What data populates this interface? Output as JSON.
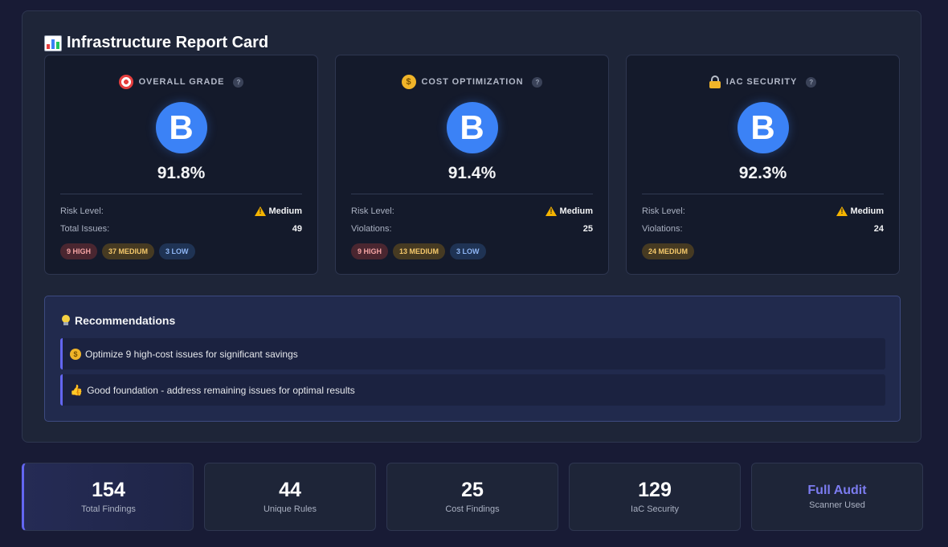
{
  "report": {
    "title": "Infrastructure Report Card",
    "title_icon": "bar-chart-icon"
  },
  "cards": [
    {
      "label": "OVERALL GRADE",
      "icon": "target-icon",
      "help": "?",
      "grade": "B",
      "percent": "91.8%",
      "row1_label": "Risk Level:",
      "row1_value": "Medium",
      "row2_label": "Total Issues:",
      "row2_value": "49",
      "badges": [
        {
          "label": "9 HIGH",
          "kind": "high"
        },
        {
          "label": "37 MEDIUM",
          "kind": "medium"
        },
        {
          "label": "3 LOW",
          "kind": "low"
        }
      ]
    },
    {
      "label": "COST OPTIMIZATION",
      "icon": "money-bag-icon",
      "help": "?",
      "grade": "B",
      "percent": "91.4%",
      "row1_label": "Risk Level:",
      "row1_value": "Medium",
      "row2_label": "Violations:",
      "row2_value": "25",
      "badges": [
        {
          "label": "9 HIGH",
          "kind": "high"
        },
        {
          "label": "13 MEDIUM",
          "kind": "medium"
        },
        {
          "label": "3 LOW",
          "kind": "low"
        }
      ]
    },
    {
      "label": "IAC SECURITY",
      "icon": "lock-icon",
      "help": "?",
      "grade": "B",
      "percent": "92.3%",
      "row1_label": "Risk Level:",
      "row1_value": "Medium",
      "row2_label": "Violations:",
      "row2_value": "24",
      "badges": [
        {
          "label": "24 MEDIUM",
          "kind": "medium"
        }
      ]
    }
  ],
  "recommendations": {
    "title": "Recommendations",
    "items": [
      {
        "icon": "money-bag-icon",
        "text": "Optimize 9 high-cost issues for significant savings"
      },
      {
        "icon": "thumbs-up-icon",
        "text": "Good foundation - address remaining issues for optimal results"
      }
    ]
  },
  "stats": [
    {
      "value": "154",
      "label": "Total Findings"
    },
    {
      "value": "44",
      "label": "Unique Rules"
    },
    {
      "value": "25",
      "label": "Cost Findings"
    },
    {
      "value": "129",
      "label": "IaC Security"
    },
    {
      "value": "Full Audit",
      "label": "Scanner Used"
    }
  ],
  "colors": {
    "grade_circle": "#3b82f6",
    "accent": "#6366f1",
    "high": "#f4a3a3",
    "medium": "#f5c86a",
    "low": "#8fb6f5"
  }
}
